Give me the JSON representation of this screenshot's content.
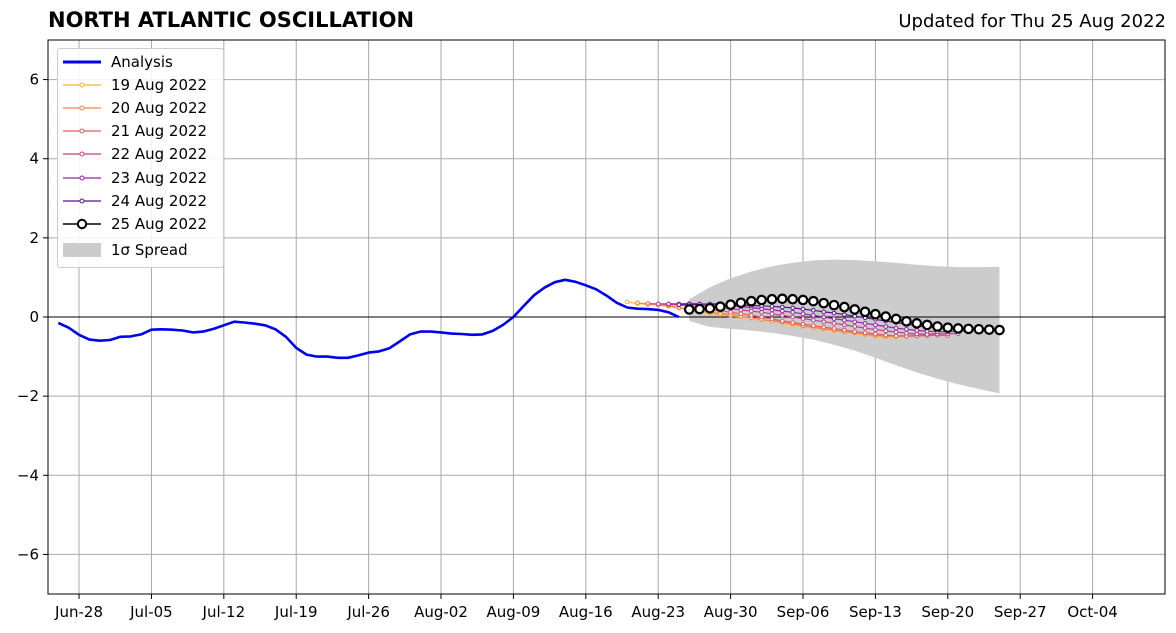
{
  "header": {
    "title": "NORTH ATLANTIC OSCILLATION",
    "subtitle": "Updated for Thu 25 Aug 2022"
  },
  "legend": {
    "placement": "top-left",
    "items": [
      {
        "label": "Analysis",
        "color": "#0000ee",
        "style": "thick-line"
      },
      {
        "label": "19 Aug 2022",
        "color": "#fdb030",
        "style": "line-marker"
      },
      {
        "label": "20 Aug 2022",
        "color": "#f4844c",
        "style": "line-marker"
      },
      {
        "label": "21 Aug 2022",
        "color": "#e05a6a",
        "style": "line-marker"
      },
      {
        "label": "22 Aug 2022",
        "color": "#c23f8c",
        "style": "line-marker"
      },
      {
        "label": "23 Aug 2022",
        "color": "#9326a8",
        "style": "line-marker"
      },
      {
        "label": "24 Aug 2022",
        "color": "#5c1294",
        "style": "line-marker"
      },
      {
        "label": "25 Aug 2022",
        "color": "#000000",
        "style": "open-circle"
      },
      {
        "label": "1σ Spread",
        "color": "#cccccc",
        "style": "patch"
      }
    ]
  },
  "chart_data": {
    "type": "line",
    "title": "NORTH ATLANTIC OSCILLATION",
    "xlabel": "",
    "ylabel": "",
    "xlim": [
      "2022-06-25",
      "2022-10-11"
    ],
    "ylim": [
      -7,
      7
    ],
    "grid": true,
    "x_tick_labels": [
      "Jun-28",
      "Jul-05",
      "Jul-12",
      "Jul-19",
      "Jul-26",
      "Aug-02",
      "Aug-09",
      "Aug-16",
      "Aug-23",
      "Aug-30",
      "Sep-06",
      "Sep-13",
      "Sep-20",
      "Sep-27",
      "Oct-04"
    ],
    "x_tick_dates": [
      "2022-06-28",
      "2022-07-05",
      "2022-07-12",
      "2022-07-19",
      "2022-07-26",
      "2022-08-02",
      "2022-08-09",
      "2022-08-16",
      "2022-08-23",
      "2022-08-30",
      "2022-09-06",
      "2022-09-13",
      "2022-09-20",
      "2022-09-27",
      "2022-10-04"
    ],
    "y_tick_labels": [
      "6",
      "4",
      "2",
      "0",
      "−2",
      "−4",
      "−6"
    ],
    "y_ticks": [
      6,
      4,
      2,
      0,
      -2,
      -4,
      -6
    ],
    "analysis": {
      "name": "Analysis",
      "color": "#0000ee",
      "x": [
        "2022-06-26",
        "2022-06-27",
        "2022-06-28",
        "2022-06-29",
        "2022-06-30",
        "2022-07-01",
        "2022-07-02",
        "2022-07-03",
        "2022-07-04",
        "2022-07-05",
        "2022-07-06",
        "2022-07-07",
        "2022-07-08",
        "2022-07-09",
        "2022-07-10",
        "2022-07-11",
        "2022-07-12",
        "2022-07-13",
        "2022-07-14",
        "2022-07-15",
        "2022-07-16",
        "2022-07-17",
        "2022-07-18",
        "2022-07-19",
        "2022-07-20",
        "2022-07-21",
        "2022-07-22",
        "2022-07-23",
        "2022-07-24",
        "2022-07-25",
        "2022-07-26",
        "2022-07-27",
        "2022-07-28",
        "2022-07-29",
        "2022-07-30",
        "2022-07-31",
        "2022-08-01",
        "2022-08-02",
        "2022-08-03",
        "2022-08-04",
        "2022-08-05",
        "2022-08-06",
        "2022-08-07",
        "2022-08-08",
        "2022-08-09",
        "2022-08-10",
        "2022-08-11",
        "2022-08-12",
        "2022-08-13",
        "2022-08-14",
        "2022-08-15",
        "2022-08-16",
        "2022-08-17",
        "2022-08-18",
        "2022-08-19",
        "2022-08-20",
        "2022-08-21",
        "2022-08-22",
        "2022-08-23",
        "2022-08-24",
        "2022-08-25"
      ],
      "values": [
        -0.15,
        -0.27,
        -0.45,
        -0.57,
        -0.6,
        -0.58,
        -0.5,
        -0.49,
        -0.44,
        -0.32,
        -0.31,
        -0.32,
        -0.34,
        -0.39,
        -0.37,
        -0.3,
        -0.21,
        -0.12,
        -0.14,
        -0.17,
        -0.21,
        -0.31,
        -0.5,
        -0.78,
        -0.95,
        -1.0,
        -1.0,
        -1.03,
        -1.03,
        -0.97,
        -0.9,
        -0.87,
        -0.79,
        -0.62,
        -0.44,
        -0.37,
        -0.37,
        -0.39,
        -0.42,
        -0.43,
        -0.45,
        -0.44,
        -0.35,
        -0.2,
        0.0,
        0.28,
        0.55,
        0.74,
        0.88,
        0.94,
        0.89,
        0.8,
        0.7,
        0.54,
        0.36,
        0.24,
        0.21,
        0.2,
        0.18,
        0.12,
        0.0
      ]
    },
    "series": [
      {
        "name": "19 Aug 2022",
        "color": "#fdb030",
        "start": "2022-08-20",
        "values": [
          0.38,
          0.34,
          0.32,
          0.3,
          0.27,
          0.22,
          0.18,
          0.13,
          0.09,
          0.06,
          0.03,
          0.0,
          -0.03,
          -0.07,
          -0.1,
          -0.15,
          -0.2,
          -0.24,
          -0.27,
          -0.31,
          -0.35,
          -0.38,
          -0.41,
          -0.45,
          -0.48,
          -0.5,
          -0.5,
          -0.49,
          -0.47,
          -0.45
        ]
      },
      {
        "name": "20 Aug 2022",
        "color": "#f4844c",
        "start": "2022-08-21",
        "values": [
          0.36,
          0.33,
          0.31,
          0.28,
          0.24,
          0.2,
          0.16,
          0.12,
          0.09,
          0.06,
          0.02,
          -0.02,
          -0.06,
          -0.1,
          -0.13,
          -0.17,
          -0.22,
          -0.26,
          -0.29,
          -0.33,
          -0.37,
          -0.4,
          -0.43,
          -0.46,
          -0.48,
          -0.48,
          -0.47,
          -0.45,
          -0.43,
          -0.4
        ]
      },
      {
        "name": "21 Aug 2022",
        "color": "#e05a6a",
        "start": "2022-08-22",
        "values": [
          0.34,
          0.33,
          0.31,
          0.3,
          0.28,
          0.24,
          0.2,
          0.16,
          0.12,
          0.08,
          0.04,
          0.0,
          -0.05,
          -0.1,
          -0.14,
          -0.18,
          -0.22,
          -0.26,
          -0.29,
          -0.33,
          -0.37,
          -0.4,
          -0.43,
          -0.46,
          -0.48,
          -0.48,
          -0.48,
          -0.47,
          -0.46,
          -0.47
        ]
      },
      {
        "name": "22 Aug 2022",
        "color": "#c23f8c",
        "start": "2022-08-23",
        "values": [
          0.33,
          0.33,
          0.32,
          0.31,
          0.3,
          0.27,
          0.24,
          0.21,
          0.18,
          0.15,
          0.12,
          0.08,
          0.04,
          0.0,
          -0.04,
          -0.08,
          -0.12,
          -0.16,
          -0.2,
          -0.24,
          -0.28,
          -0.32,
          -0.35,
          -0.38,
          -0.41,
          -0.43,
          -0.44,
          -0.43,
          -0.42,
          -0.42
        ]
      },
      {
        "name": "23 Aug 2022",
        "color": "#9326a8",
        "start": "2022-08-24",
        "values": [
          0.33,
          0.33,
          0.34,
          0.33,
          0.32,
          0.3,
          0.28,
          0.26,
          0.24,
          0.21,
          0.18,
          0.15,
          0.12,
          0.08,
          0.04,
          0.0,
          -0.04,
          -0.08,
          -0.12,
          -0.16,
          -0.2,
          -0.24,
          -0.28,
          -0.31,
          -0.34,
          -0.36,
          -0.37,
          -0.37,
          -0.36,
          -0.35
        ]
      },
      {
        "name": "24 Aug 2022",
        "color": "#5c1294",
        "start": "2022-08-25",
        "values": [
          0.31,
          0.31,
          0.32,
          0.33,
          0.33,
          0.32,
          0.3,
          0.29,
          0.28,
          0.27,
          0.25,
          0.23,
          0.2,
          0.17,
          0.13,
          0.1,
          0.06,
          0.02,
          -0.02,
          -0.06,
          -0.1,
          -0.14,
          -0.18,
          -0.22,
          -0.25,
          -0.27,
          -0.28,
          -0.29,
          -0.3,
          -0.3
        ]
      },
      {
        "name": "25 Aug 2022",
        "color": "#000000",
        "start": "2022-08-26",
        "values": [
          0.19,
          0.2,
          0.22,
          0.26,
          0.31,
          0.36,
          0.4,
          0.43,
          0.45,
          0.46,
          0.45,
          0.43,
          0.4,
          0.35,
          0.3,
          0.25,
          0.19,
          0.13,
          0.07,
          0.01,
          -0.05,
          -0.11,
          -0.16,
          -0.2,
          -0.24,
          -0.27,
          -0.29,
          -0.3,
          -0.31,
          -0.32,
          -0.33
        ]
      }
    ],
    "spread": {
      "name": "1σ Spread",
      "color": "#cccccc",
      "x": [
        "2022-08-26",
        "2022-08-28",
        "2022-08-30",
        "2022-09-01",
        "2022-09-03",
        "2022-09-05",
        "2022-09-07",
        "2022-09-09",
        "2022-09-11",
        "2022-09-13",
        "2022-09-15",
        "2022-09-17",
        "2022-09-19",
        "2022-09-21",
        "2022-09-23",
        "2022-09-25"
      ],
      "upper": [
        0.45,
        0.75,
        0.98,
        1.15,
        1.28,
        1.37,
        1.43,
        1.45,
        1.44,
        1.41,
        1.37,
        1.32,
        1.28,
        1.26,
        1.26,
        1.27
      ],
      "lower": [
        -0.1,
        -0.25,
        -0.3,
        -0.34,
        -0.4,
        -0.48,
        -0.57,
        -0.7,
        -0.85,
        -1.03,
        -1.22,
        -1.4,
        -1.56,
        -1.7,
        -1.82,
        -1.93
      ]
    }
  }
}
